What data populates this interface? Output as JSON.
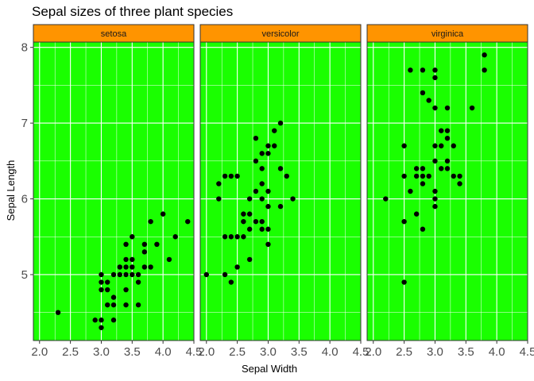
{
  "chart_data": {
    "type": "scatter",
    "title": "Sepal sizes of three plant species",
    "xlabel": "Sepal Width",
    "ylabel": "Sepal Length",
    "xlim": [
      1.9,
      4.5
    ],
    "ylim": [
      4.13,
      8.07
    ],
    "x_ticks": [
      2.0,
      2.5,
      3.0,
      3.5,
      4.0,
      4.5
    ],
    "x_tick_labels": [
      "2.0",
      "2.5",
      "3.0",
      "3.5",
      "4.0",
      "4.5"
    ],
    "y_ticks": [
      5,
      6,
      7,
      8
    ],
    "y_tick_labels": [
      "5",
      "6",
      "7",
      "8"
    ],
    "grid": true,
    "colors": {
      "panel_background": "#1aff00",
      "strip_background": "#ff9400",
      "point": "#000000",
      "grid": "#ffffff"
    },
    "panels": [
      {
        "label": "setosa",
        "points": [
          [
            2.3,
            4.5
          ],
          [
            2.9,
            4.4
          ],
          [
            3.0,
            4.4
          ],
          [
            3.0,
            4.3
          ],
          [
            3.2,
            4.4
          ],
          [
            3.0,
            4.8
          ],
          [
            3.0,
            4.9
          ],
          [
            3.0,
            5.0
          ],
          [
            3.1,
            4.6
          ],
          [
            3.1,
            4.8
          ],
          [
            3.1,
            4.9
          ],
          [
            3.2,
            4.6
          ],
          [
            3.2,
            4.7
          ],
          [
            3.2,
            5.0
          ],
          [
            3.3,
            5.0
          ],
          [
            3.3,
            5.1
          ],
          [
            3.4,
            4.8
          ],
          [
            3.4,
            5.0
          ],
          [
            3.4,
            5.1
          ],
          [
            3.4,
            5.2
          ],
          [
            3.4,
            5.4
          ],
          [
            3.4,
            4.6
          ],
          [
            3.5,
            5.0
          ],
          [
            3.5,
            5.1
          ],
          [
            3.5,
            5.2
          ],
          [
            3.5,
            5.5
          ],
          [
            3.6,
            4.6
          ],
          [
            3.6,
            4.9
          ],
          [
            3.6,
            5.0
          ],
          [
            3.7,
            5.1
          ],
          [
            3.7,
            5.3
          ],
          [
            3.7,
            5.4
          ],
          [
            3.8,
            5.1
          ],
          [
            3.8,
            5.7
          ],
          [
            3.9,
            5.4
          ],
          [
            4.0,
            5.8
          ],
          [
            4.1,
            5.2
          ],
          [
            4.2,
            5.5
          ],
          [
            4.4,
            5.7
          ]
        ]
      },
      {
        "label": "versicolor",
        "points": [
          [
            2.0,
            5.0
          ],
          [
            2.2,
            6.0
          ],
          [
            2.2,
            6.2
          ],
          [
            2.3,
            6.3
          ],
          [
            2.3,
            5.5
          ],
          [
            2.3,
            5.0
          ],
          [
            2.4,
            5.5
          ],
          [
            2.4,
            4.9
          ],
          [
            2.5,
            5.5
          ],
          [
            2.5,
            6.3
          ],
          [
            2.5,
            5.1
          ],
          [
            2.6,
            5.5
          ],
          [
            2.6,
            5.7
          ],
          [
            2.6,
            5.8
          ],
          [
            2.7,
            5.8
          ],
          [
            2.7,
            6.0
          ],
          [
            2.7,
            5.2
          ],
          [
            2.7,
            5.6
          ],
          [
            2.8,
            5.7
          ],
          [
            2.8,
            6.5
          ],
          [
            2.8,
            6.8
          ],
          [
            2.8,
            6.1
          ],
          [
            2.9,
            5.6
          ],
          [
            2.9,
            5.7
          ],
          [
            2.9,
            6.0
          ],
          [
            2.9,
            6.2
          ],
          [
            2.9,
            6.4
          ],
          [
            2.9,
            6.6
          ],
          [
            3.0,
            5.4
          ],
          [
            3.0,
            5.6
          ],
          [
            3.0,
            5.9
          ],
          [
            3.0,
            6.1
          ],
          [
            3.0,
            6.7
          ],
          [
            3.0,
            6.6
          ],
          [
            3.1,
            6.7
          ],
          [
            3.1,
            6.9
          ],
          [
            3.2,
            5.9
          ],
          [
            3.2,
            6.4
          ],
          [
            3.2,
            7.0
          ],
          [
            3.3,
            6.3
          ],
          [
            3.4,
            6.0
          ],
          [
            2.4,
            6.3
          ]
        ]
      },
      {
        "label": "virginica",
        "points": [
          [
            2.2,
            6.0
          ],
          [
            2.5,
            4.9
          ],
          [
            2.5,
            5.7
          ],
          [
            2.5,
            6.3
          ],
          [
            2.5,
            6.7
          ],
          [
            2.6,
            6.1
          ],
          [
            2.6,
            7.7
          ],
          [
            2.7,
            5.8
          ],
          [
            2.7,
            6.3
          ],
          [
            2.7,
            6.4
          ],
          [
            2.8,
            5.6
          ],
          [
            2.8,
            6.2
          ],
          [
            2.8,
            6.3
          ],
          [
            2.8,
            6.4
          ],
          [
            2.8,
            7.4
          ],
          [
            2.8,
            7.7
          ],
          [
            2.9,
            6.3
          ],
          [
            2.9,
            7.3
          ],
          [
            3.0,
            5.9
          ],
          [
            3.0,
            6.0
          ],
          [
            3.0,
            6.1
          ],
          [
            3.0,
            6.5
          ],
          [
            3.0,
            6.7
          ],
          [
            3.0,
            7.2
          ],
          [
            3.0,
            7.6
          ],
          [
            3.0,
            7.7
          ],
          [
            3.1,
            6.4
          ],
          [
            3.1,
            6.7
          ],
          [
            3.1,
            6.9
          ],
          [
            3.2,
            6.4
          ],
          [
            3.2,
            6.5
          ],
          [
            3.2,
            6.8
          ],
          [
            3.2,
            6.9
          ],
          [
            3.2,
            7.2
          ],
          [
            3.3,
            6.3
          ],
          [
            3.3,
            6.7
          ],
          [
            3.4,
            6.2
          ],
          [
            3.4,
            6.3
          ],
          [
            3.6,
            7.2
          ],
          [
            3.8,
            7.7
          ],
          [
            3.8,
            7.9
          ]
        ]
      }
    ]
  }
}
